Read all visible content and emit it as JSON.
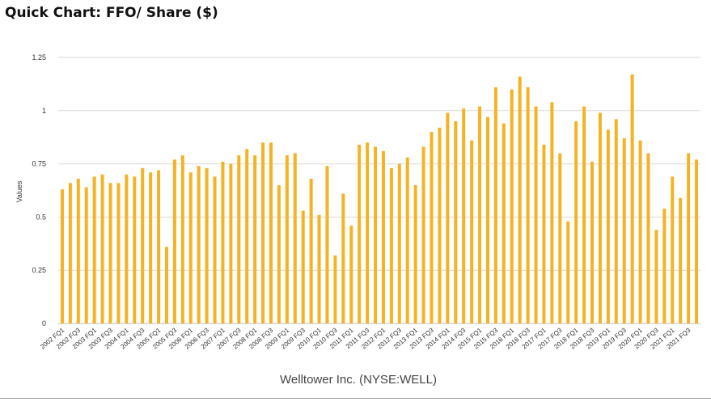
{
  "header": {
    "title": "Quick Chart: FFO/ Share ($)"
  },
  "footer": {
    "company": "Welltower Inc. (NYSE:WELL)"
  },
  "colors": {
    "bar": "#F5B324",
    "grid": "#d9d9d9",
    "axis": "#bdbdbd",
    "text": "#333333"
  },
  "chart_data": {
    "type": "bar",
    "ylabel": "Values",
    "xlabel": "",
    "ylim": [
      0,
      1.25
    ],
    "yticks": [
      0,
      0.25,
      0.5,
      0.75,
      1,
      1.25
    ],
    "ytick_labels": [
      "0",
      "0.25",
      "0.5",
      "0.75",
      "1",
      "1.25"
    ],
    "grid": true,
    "legend": "none",
    "categories": [
      "2002 FQ1",
      "2002 FQ2",
      "2002 FQ3",
      "2002 FQ4",
      "2003 FQ1",
      "2003 FQ2",
      "2003 FQ3",
      "2003 FQ4",
      "2004 FQ1",
      "2004 FQ2",
      "2004 FQ3",
      "2004 FQ4",
      "2005 FQ1",
      "2005 FQ2",
      "2005 FQ3",
      "2005 FQ4",
      "2006 FQ1",
      "2006 FQ2",
      "2006 FQ3",
      "2006 FQ4",
      "2007 FQ1",
      "2007 FQ2",
      "2007 FQ3",
      "2007 FQ4",
      "2008 FQ1",
      "2008 FQ2",
      "2008 FQ3",
      "2008 FQ4",
      "2009 FQ1",
      "2009 FQ2",
      "2009 FQ3",
      "2009 FQ4",
      "2010 FQ1",
      "2010 FQ2",
      "2010 FQ3",
      "2010 FQ4",
      "2011 FQ1",
      "2011 FQ2",
      "2011 FQ3",
      "2011 FQ4",
      "2012 FQ1",
      "2012 FQ2",
      "2012 FQ3",
      "2012 FQ4",
      "2013 FQ1",
      "2013 FQ2",
      "2013 FQ3",
      "2013 FQ4",
      "2014 FQ1",
      "2014 FQ2",
      "2014 FQ3",
      "2014 FQ4",
      "2015 FQ1",
      "2015 FQ2",
      "2015 FQ3",
      "2015 FQ4",
      "2016 FQ1",
      "2016 FQ2",
      "2016 FQ3",
      "2016 FQ4",
      "2017 FQ1",
      "2017 FQ2",
      "2017 FQ3",
      "2017 FQ4",
      "2018 FQ1",
      "2018 FQ2",
      "2018 FQ3",
      "2018 FQ4",
      "2019 FQ1",
      "2019 FQ2",
      "2019 FQ3",
      "2019 FQ4",
      "2020 FQ1",
      "2020 FQ2",
      "2020 FQ3",
      "2020 FQ4",
      "2021 FQ1",
      "2021 FQ2",
      "2021 FQ3",
      "2021 FQ4"
    ],
    "labeled_categories": [
      "2002 FQ1",
      "2002 FQ3",
      "2003 FQ1",
      "2003 FQ3",
      "2004 FQ1",
      "2004 FQ3",
      "2005 FQ1",
      "2005 FQ3",
      "2006 FQ1",
      "2006 FQ3",
      "2007 FQ1",
      "2007 FQ3",
      "2008 FQ1",
      "2008 FQ3",
      "2009 FQ1",
      "2009 FQ3",
      "2010 FQ1",
      "2010 FQ3",
      "2011 FQ1",
      "2011 FQ3",
      "2012 FQ1",
      "2012 FQ3",
      "2013 FQ1",
      "2013 FQ3",
      "2014 FQ1",
      "2014 FQ3",
      "2015 FQ1",
      "2015 FQ3",
      "2016 FQ1",
      "2016 FQ3",
      "2017 FQ1",
      "2017 FQ3",
      "2018 FQ1",
      "2018 FQ3",
      "2019 FQ1",
      "2019 FQ3",
      "2020 FQ1",
      "2020 FQ3",
      "2021 FQ1",
      "2021 FQ3"
    ],
    "values": [
      0.63,
      0.66,
      0.68,
      0.64,
      0.69,
      0.7,
      0.66,
      0.66,
      0.7,
      0.69,
      0.73,
      0.71,
      0.72,
      0.36,
      0.77,
      0.79,
      0.71,
      0.74,
      0.73,
      0.69,
      0.76,
      0.75,
      0.79,
      0.82,
      0.79,
      0.85,
      0.85,
      0.65,
      0.79,
      0.8,
      0.53,
      0.68,
      0.51,
      0.74,
      0.32,
      0.61,
      0.46,
      0.84,
      0.85,
      0.83,
      0.81,
      0.73,
      0.75,
      0.78,
      0.65,
      0.83,
      0.9,
      0.92,
      0.99,
      0.95,
      1.01,
      0.86,
      1.02,
      0.97,
      1.11,
      0.94,
      1.1,
      1.16,
      1.11,
      1.02,
      0.84,
      1.04,
      0.8,
      0.48,
      0.95,
      1.02,
      0.76,
      0.99,
      0.91,
      0.96,
      0.87,
      1.17,
      0.86,
      0.8,
      0.44,
      0.54,
      0.69,
      0.59,
      0.8,
      0.77
    ]
  }
}
